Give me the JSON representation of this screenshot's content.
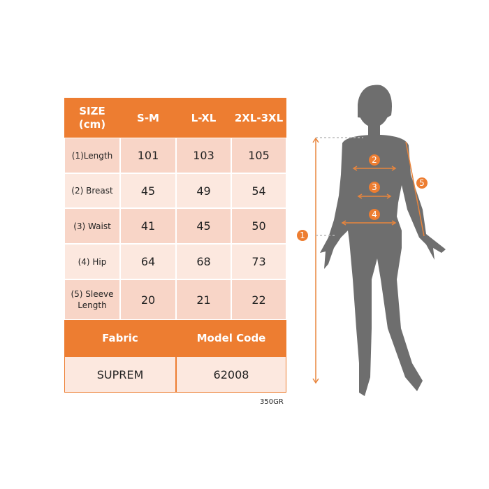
{
  "table": {
    "header": {
      "size_label": "SIZE\n(cm)",
      "sizes": [
        "S-M",
        "L-XL",
        "2XL-3XL"
      ]
    },
    "rows": [
      {
        "label": "(1)Length",
        "values": [
          "101",
          "103",
          "105"
        ]
      },
      {
        "label": "(2) Breast",
        "values": [
          "45",
          "49",
          "54"
        ]
      },
      {
        "label": "(3) Waist",
        "values": [
          "41",
          "45",
          "50"
        ]
      },
      {
        "label": "(4) Hip",
        "values": [
          "64",
          "68",
          "73"
        ]
      },
      {
        "label": "(5) Sleeve\nLength",
        "values": [
          "20",
          "21",
          "22"
        ]
      }
    ],
    "footer": {
      "fabric_label": "Fabric",
      "model_code_label": "Model Code",
      "fabric_value": "SUPREM",
      "model_code_value": "62008"
    }
  },
  "weight_code": "350GR",
  "figure": {
    "markers": [
      "1",
      "2",
      "3",
      "4",
      "5"
    ]
  },
  "colors": {
    "accent": "#ED7D31",
    "silhouette": "#6E6E6E",
    "row_dark": "#F8D5C7",
    "row_light": "#FCE8DF"
  }
}
